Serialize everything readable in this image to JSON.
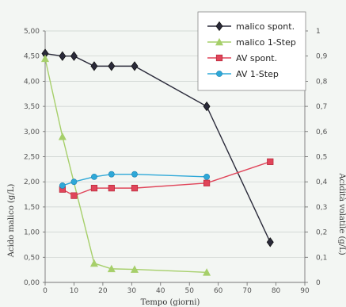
{
  "chart_data": {
    "type": "line",
    "xlabel": "Tempo (giorni)",
    "ylabel_left": "Acido malico (g/L)",
    "ylabel_right": "Acidità volatile (g/L)",
    "x_ticks": [
      "0",
      "10",
      "20",
      "30",
      "40",
      "50",
      "60",
      "70",
      "80",
      "90"
    ],
    "y_left_ticks": [
      "0,00",
      "0,50",
      "1,00",
      "1,50",
      "2,00",
      "2,50",
      "3,00",
      "3,50",
      "4,00",
      "4,50",
      "5,00"
    ],
    "y_right_ticks": [
      "0",
      "0,1",
      "0,2",
      "0,3",
      "0,4",
      "0,5",
      "0,6",
      "0,7",
      "0,8",
      "0,9",
      "1"
    ],
    "xlim": [
      0,
      90
    ],
    "ylim_left": [
      0,
      5
    ],
    "ylim_right": [
      0,
      1
    ],
    "grid": "horizontal",
    "legend_position": "top-right",
    "series": [
      {
        "name": "malico spont.",
        "axis": "left",
        "marker": "diamond",
        "color": "#2a2a3a",
        "x": [
          0,
          6,
          10,
          17,
          23,
          31,
          56,
          78
        ],
        "y": [
          4.55,
          4.5,
          4.5,
          4.3,
          4.3,
          4.3,
          3.5,
          0.8
        ]
      },
      {
        "name": "malico 1-Step",
        "axis": "left",
        "marker": "triangle",
        "color": "#a6cf6a",
        "x": [
          0,
          6,
          17,
          23,
          31,
          56
        ],
        "y": [
          4.45,
          2.9,
          0.38,
          0.27,
          0.26,
          0.2
        ]
      },
      {
        "name": "AV spont.",
        "axis": "right",
        "marker": "square",
        "color": "#e0455a",
        "x": [
          6,
          10,
          17,
          23,
          31,
          56,
          78
        ],
        "y": [
          0.37,
          0.345,
          0.375,
          0.375,
          0.375,
          0.395,
          0.48
        ]
      },
      {
        "name": "AV 1-Step",
        "axis": "right",
        "marker": "circle",
        "color": "#2ea8d8",
        "x": [
          6,
          10,
          17,
          23,
          31,
          56
        ],
        "y": [
          0.385,
          0.4,
          0.42,
          0.43,
          0.43,
          0.42
        ]
      }
    ]
  }
}
